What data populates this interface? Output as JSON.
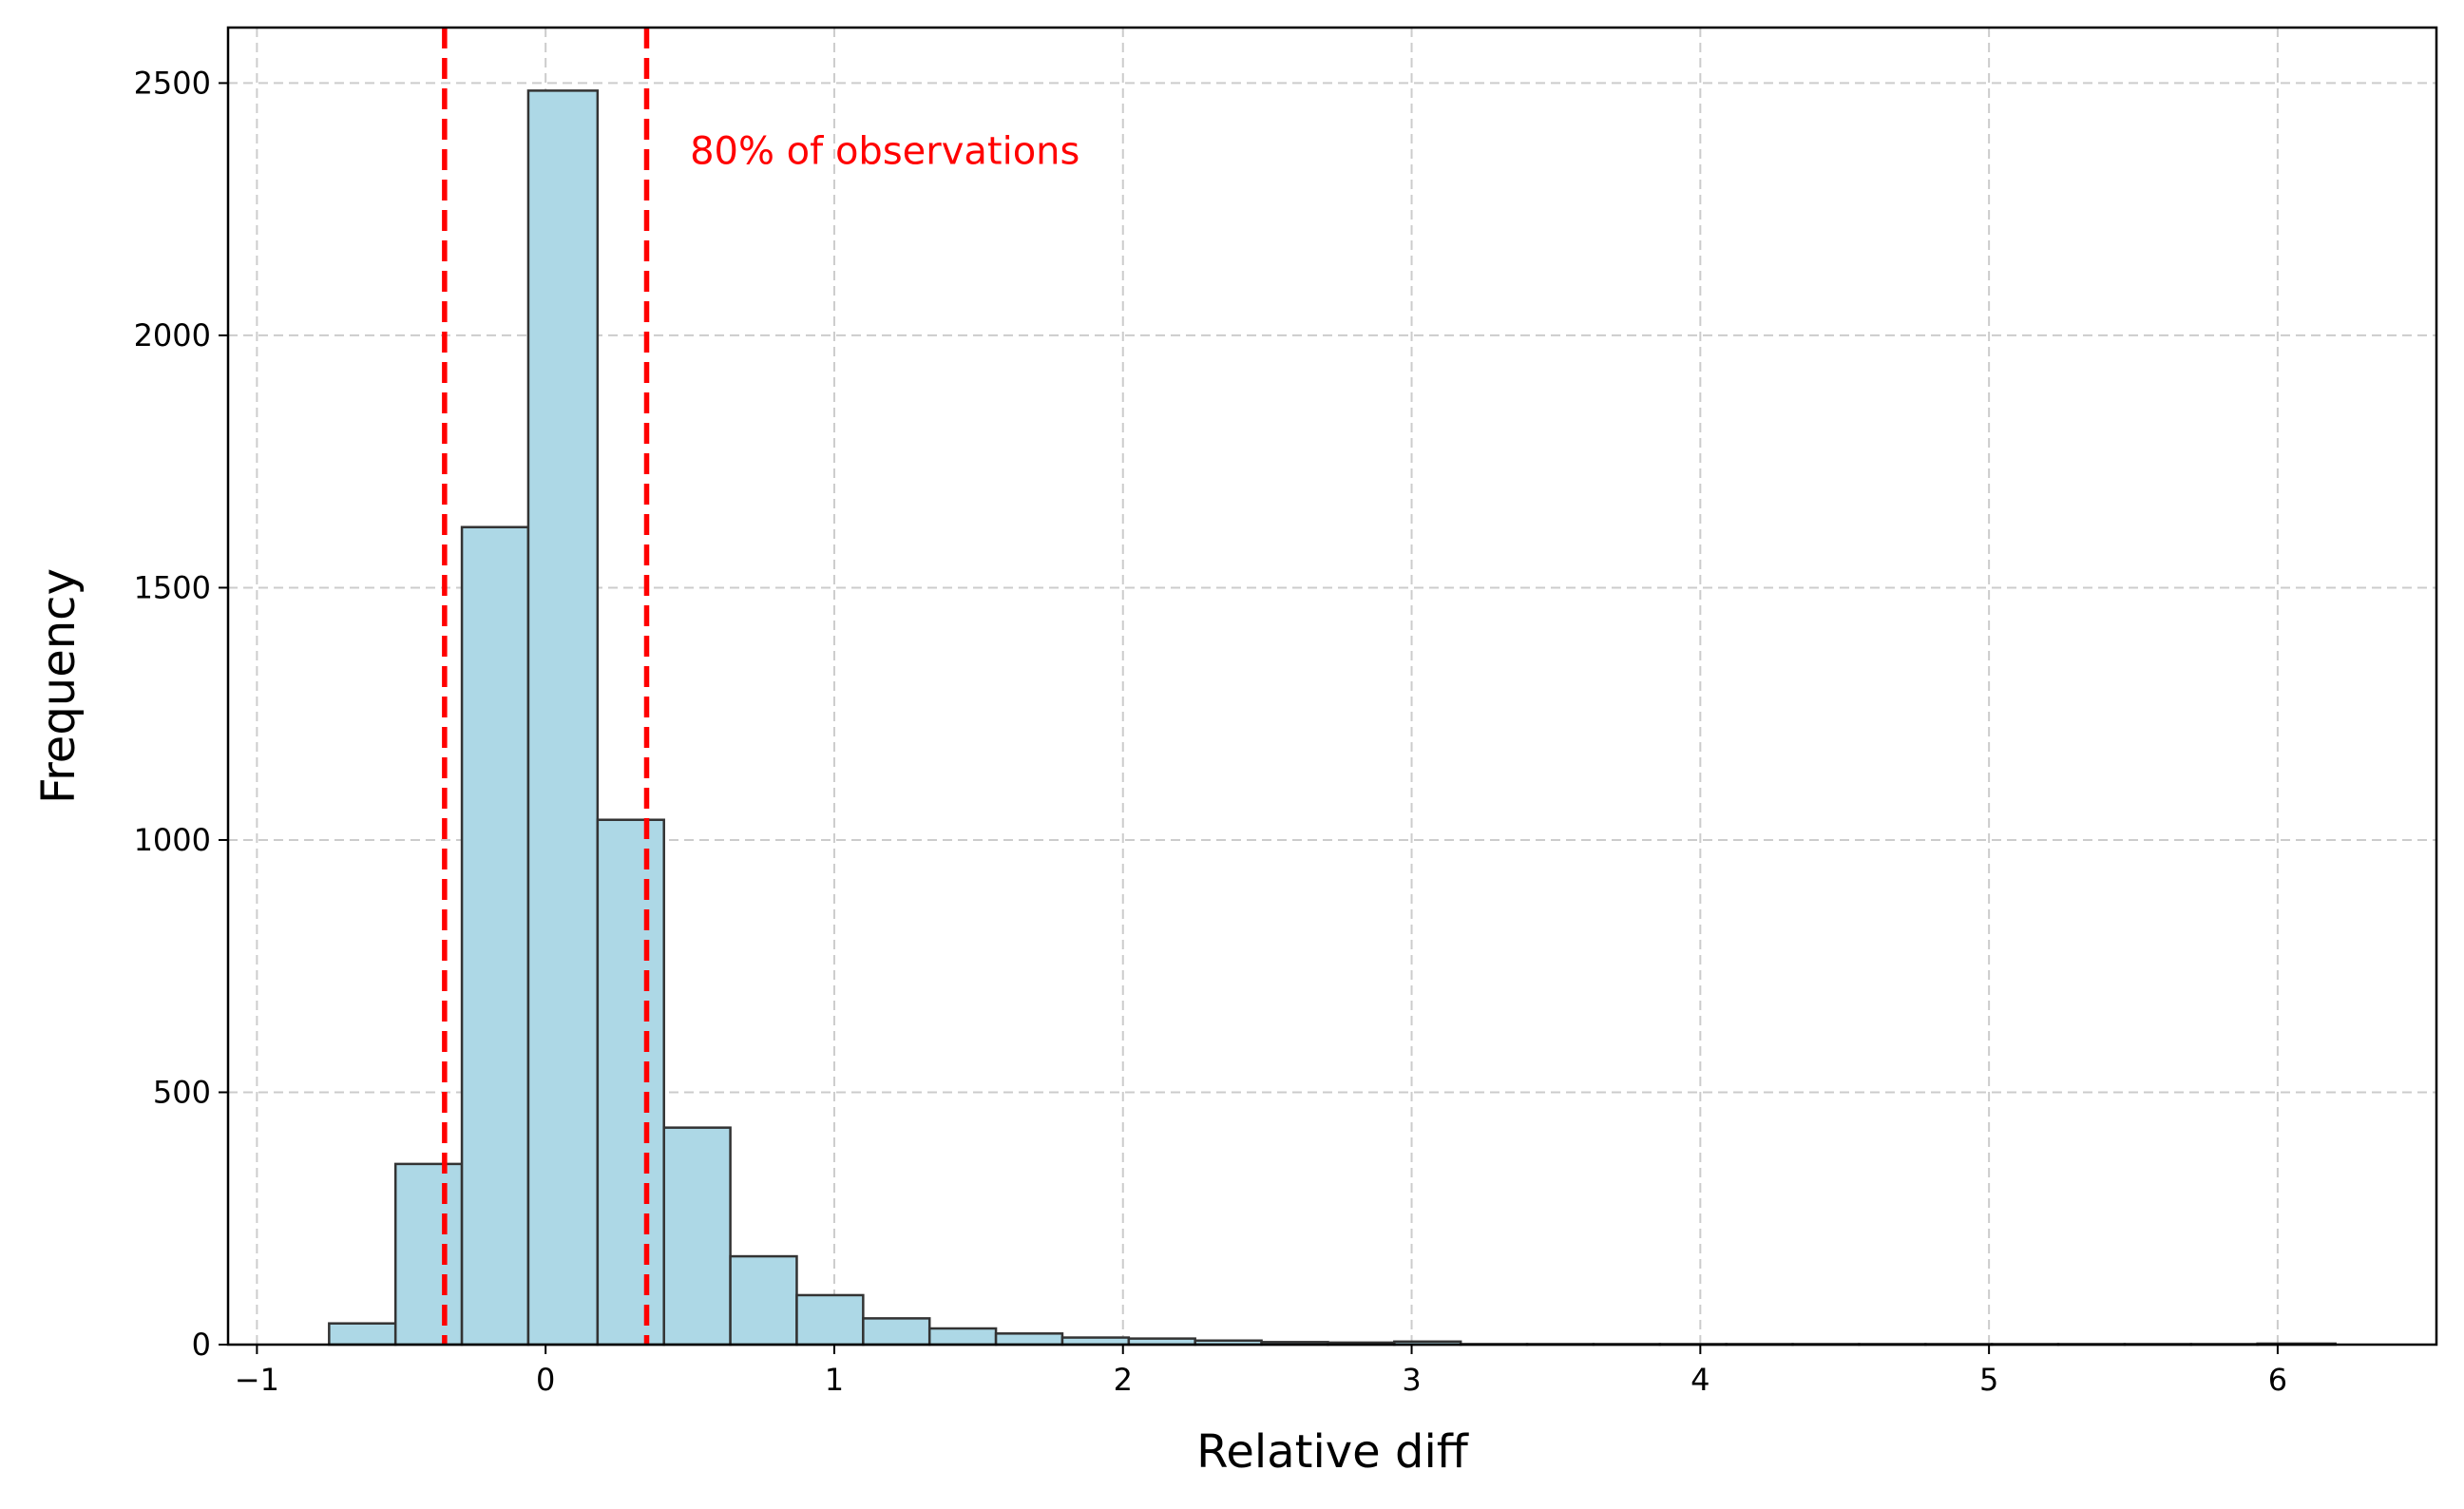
{
  "chart_data": {
    "type": "bar",
    "subtype": "histogram",
    "title": "",
    "xlabel": "Relative diff",
    "ylabel": "Frequency",
    "xlim": [
      -1.1,
      6.55
    ],
    "ylim": [
      0,
      2610
    ],
    "x_ticks": [
      -1,
      0,
      1,
      2,
      3,
      4,
      5,
      6
    ],
    "x_tick_labels": [
      "−1",
      "0",
      "1",
      "2",
      "3",
      "4",
      "5",
      "6"
    ],
    "y_ticks": [
      0,
      500,
      1000,
      1500,
      2000,
      2500
    ],
    "y_tick_labels": [
      "0",
      "500",
      "1000",
      "1500",
      "2000",
      "2500"
    ],
    "grid": true,
    "bar_color": "#add8e6",
    "bar_edge_color": "#333333",
    "bins": [
      {
        "x0": -0.75,
        "x1": -0.52,
        "count": 42
      },
      {
        "x0": -0.52,
        "x1": -0.29,
        "count": 358
      },
      {
        "x0": -0.29,
        "x1": -0.06,
        "count": 1620
      },
      {
        "x0": -0.06,
        "x1": 0.18,
        "count": 2485
      },
      {
        "x0": 0.18,
        "x1": 0.41,
        "count": 1040
      },
      {
        "x0": 0.41,
        "x1": 0.64,
        "count": 430
      },
      {
        "x0": 0.64,
        "x1": 0.87,
        "count": 175
      },
      {
        "x0": 0.87,
        "x1": 1.1,
        "count": 98
      },
      {
        "x0": 1.1,
        "x1": 1.33,
        "count": 52
      },
      {
        "x0": 1.33,
        "x1": 1.56,
        "count": 32
      },
      {
        "x0": 1.56,
        "x1": 1.79,
        "count": 22
      },
      {
        "x0": 1.79,
        "x1": 2.02,
        "count": 14
      },
      {
        "x0": 2.02,
        "x1": 2.25,
        "count": 12
      },
      {
        "x0": 2.25,
        "x1": 2.48,
        "count": 8
      },
      {
        "x0": 2.48,
        "x1": 2.71,
        "count": 5
      },
      {
        "x0": 2.71,
        "x1": 2.94,
        "count": 4
      },
      {
        "x0": 2.94,
        "x1": 3.17,
        "count": 6
      },
      {
        "x0": 3.17,
        "x1": 3.4,
        "count": 1
      },
      {
        "x0": 3.4,
        "x1": 3.63,
        "count": 1
      },
      {
        "x0": 3.63,
        "x1": 3.86,
        "count": 1
      },
      {
        "x0": 3.86,
        "x1": 4.09,
        "count": 1
      },
      {
        "x0": 4.09,
        "x1": 4.32,
        "count": 1
      },
      {
        "x0": 4.32,
        "x1": 4.55,
        "count": 1
      },
      {
        "x0": 4.55,
        "x1": 4.78,
        "count": 1
      },
      {
        "x0": 4.78,
        "x1": 5.01,
        "count": 1
      },
      {
        "x0": 5.01,
        "x1": 5.24,
        "count": 1
      },
      {
        "x0": 5.24,
        "x1": 5.47,
        "count": 1
      },
      {
        "x0": 5.47,
        "x1": 5.7,
        "count": 1
      },
      {
        "x0": 5.7,
        "x1": 5.93,
        "count": 1
      },
      {
        "x0": 5.93,
        "x1": 6.2,
        "count": 2
      }
    ],
    "reference_lines": [
      {
        "x": -0.35,
        "color": "#ff0000",
        "style": "dashed"
      },
      {
        "x": 0.35,
        "color": "#ff0000",
        "style": "dashed"
      }
    ],
    "annotations": [
      {
        "text": "80% of observations",
        "x": 0.5,
        "y": 2340,
        "color": "#ff0000"
      }
    ]
  }
}
